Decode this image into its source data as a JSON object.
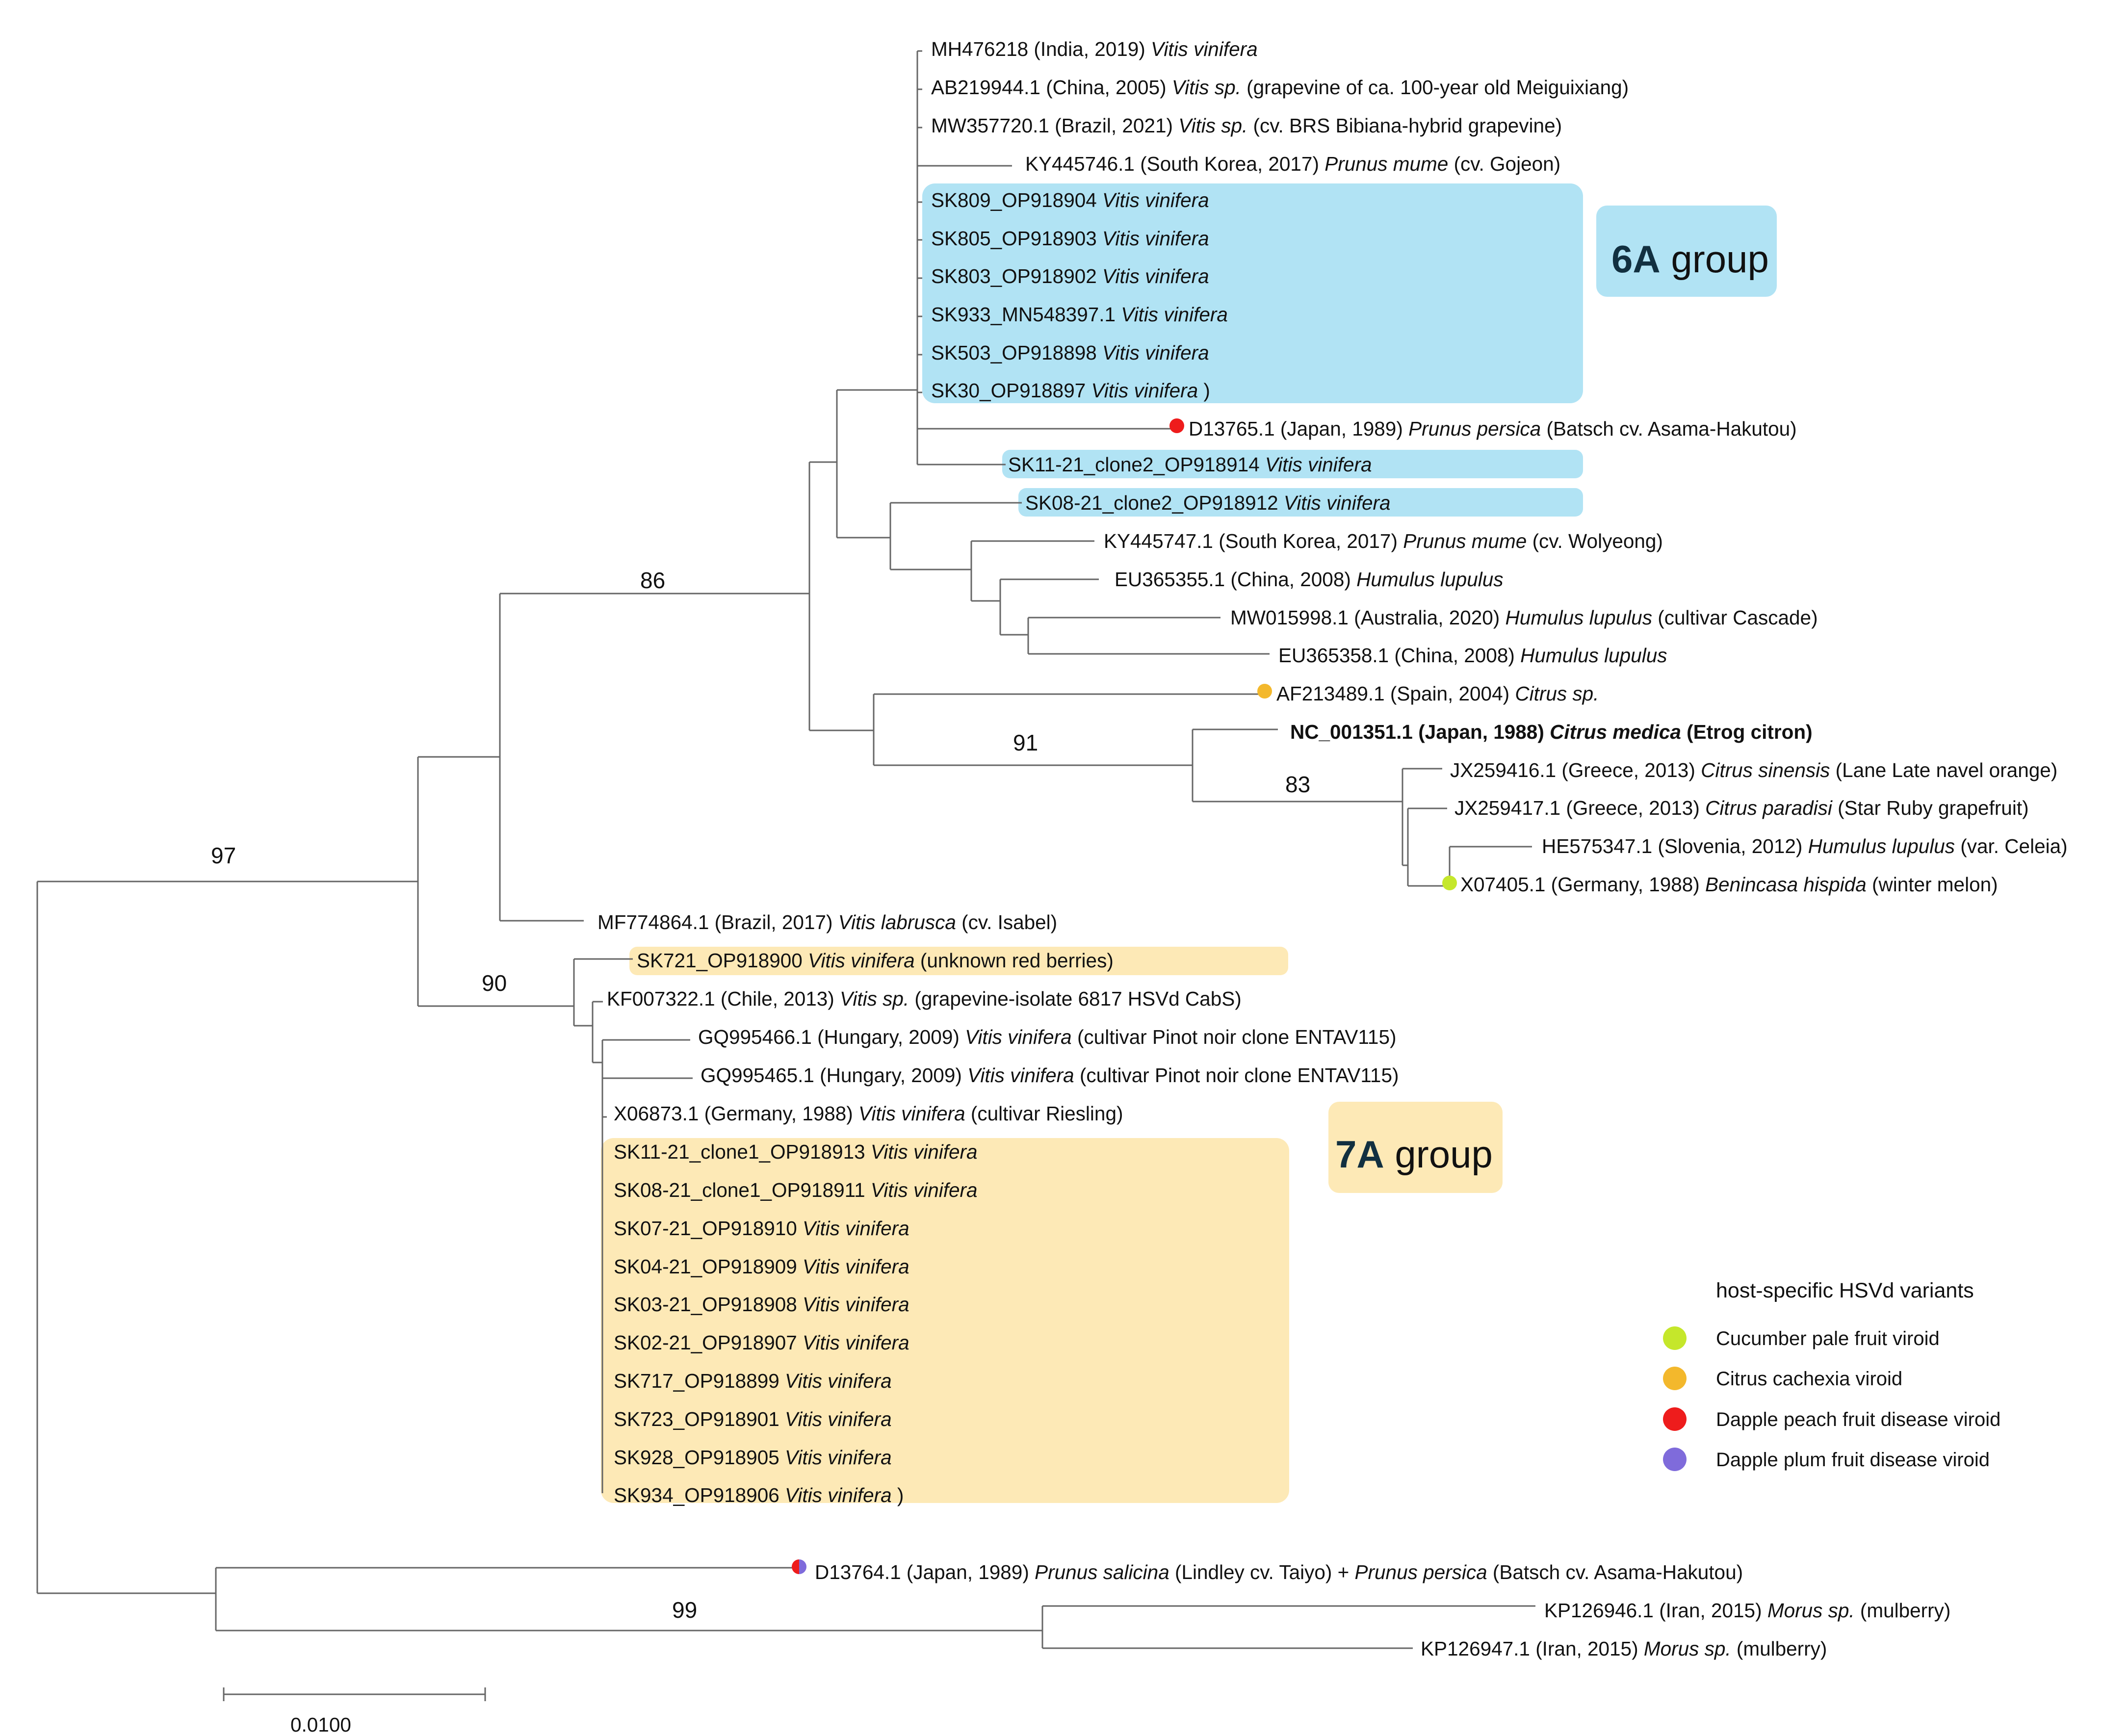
{
  "colors": {
    "group_6A": "#b1e3f4",
    "group_7A": "#fde9b6",
    "cucumber": "#c5e72b",
    "citrus_cachexia": "#f3b82c",
    "dapple_peach": "#ee1c1c",
    "dapple_plum": "#7f6bdb"
  },
  "groups": {
    "g6A": {
      "bold": "6A",
      "rest": " group"
    },
    "g7A": {
      "bold": "7A",
      "rest": " group"
    }
  },
  "legend": {
    "title": "host-specific HSVd variants",
    "items": [
      {
        "label": "Cucumber pale fruit viroid",
        "color": "#c5e72b"
      },
      {
        "label": "Citrus cachexia viroid",
        "color": "#f3b82c"
      },
      {
        "label": "Dapple peach fruit disease viroid",
        "color": "#ee1c1c"
      },
      {
        "label": "Dapple plum fruit disease viroid",
        "color": "#7f6bdb"
      }
    ]
  },
  "scale_bar": {
    "label": "0.0100"
  },
  "bootstrap": {
    "b97": "97",
    "b86": "86",
    "b91": "91",
    "b83": "83",
    "b90": "90",
    "b99": "99"
  },
  "taxa": {
    "mh476218": {
      "accession": "MH476218 (India, 2019) ",
      "species": "Vitis vinifera",
      "note": ""
    },
    "ab219944": {
      "accession": "AB219944.1 (China, 2005) ",
      "species": "Vitis sp.",
      "note": " (grapevine of ca. 100-year old Meiguixiang)"
    },
    "mw357720": {
      "accession": "MW357720.1 (Brazil, 2021) ",
      "species": "Vitis sp.",
      "note": " (cv. BRS Bibiana-hybrid grapevine)"
    },
    "ky445746": {
      "accession": "KY445746.1 (South Korea, 2017) ",
      "species": "Prunus mume",
      "note": " (cv. Gojeon)"
    },
    "sk809": {
      "accession": "SK809_OP918904 ",
      "species": "Vitis vinifera",
      "note": ""
    },
    "sk805": {
      "accession": "SK805_OP918903 ",
      "species": "Vitis vinifera",
      "note": ""
    },
    "sk803": {
      "accession": "SK803_OP918902 ",
      "species": "Vitis vinifera",
      "note": ""
    },
    "sk933": {
      "accession": "SK933_MN548397.1 ",
      "species": "Vitis vinifera",
      "note": ""
    },
    "sk503": {
      "accession": "SK503_OP918898 ",
      "species": "Vitis vinifera",
      "note": ""
    },
    "sk30": {
      "accession": "SK30_OP918897 ",
      "species": "Vitis vinifera",
      "note": " )"
    },
    "d13765": {
      "accession": "D13765.1 (Japan, 1989) ",
      "species": "Prunus persica",
      "note": " (Batsch cv. Asama-Hakutou)"
    },
    "sk1121c2": {
      "accession": "SK11-21_clone2_OP918914 ",
      "species": "Vitis vinifera",
      "note": ""
    },
    "sk0821c2": {
      "accession": "SK08-21_clone2_OP918912 ",
      "species": "Vitis vinifera",
      "note": ""
    },
    "ky445747": {
      "accession": "KY445747.1 (South Korea, 2017) ",
      "species": "Prunus mume",
      "note": " (cv. Wolyeong)"
    },
    "eu365355": {
      "accession": "EU365355.1 (China, 2008) ",
      "species": "Humulus lupulus",
      "note": ""
    },
    "mw015998": {
      "accession": "MW015998.1 (Australia, 2020) ",
      "species": "Humulus lupulus",
      "note": " (cultivar Cascade)"
    },
    "eu365358": {
      "accession": "EU365358.1 (China, 2008) ",
      "species": "Humulus lupulus",
      "note": ""
    },
    "af213489": {
      "accession": "AF213489.1 (Spain, 2004) ",
      "species": "Citrus sp.",
      "note": ""
    },
    "nc001351": {
      "accession": "NC_001351.1 (Japan, 1988) ",
      "species": "Citrus medica",
      "note": " (Etrog citron)"
    },
    "jx259416": {
      "accession": "JX259416.1 (Greece, 2013) ",
      "species": "Citrus sinensis",
      "note": " (Lane Late navel orange)"
    },
    "jx259417": {
      "accession": "JX259417.1 (Greece, 2013) ",
      "species": "Citrus paradisi",
      "note": " (Star Ruby grapefruit)"
    },
    "he575347": {
      "accession": "HE575347.1 (Slovenia, 2012) ",
      "species": "Humulus lupulus",
      "note": " (var. Celeia)"
    },
    "x07405": {
      "accession": "X07405.1 (Germany, 1988) ",
      "species": "Benincasa hispida",
      "note": " (winter melon)"
    },
    "mf774864": {
      "accession": "MF774864.1 (Brazil, 2017) ",
      "species": "Vitis labrusca",
      "note": " (cv. Isabel)"
    },
    "sk721": {
      "accession": "SK721_OP918900 ",
      "species": "Vitis vinifera",
      "note": " (unknown red berries)"
    },
    "kf007322": {
      "accession": "KF007322.1 (Chile, 2013) ",
      "species": "Vitis sp.",
      "note": " (grapevine-isolate 6817 HSVd CabS)"
    },
    "gq995466": {
      "accession": "GQ995466.1 (Hungary, 2009) ",
      "species": "Vitis vinifera",
      "note": " (cultivar Pinot noir clone ENTAV115)"
    },
    "gq995465": {
      "accession": "GQ995465.1 (Hungary, 2009) ",
      "species": "Vitis vinifera",
      "note": " (cultivar Pinot noir clone ENTAV115)"
    },
    "x06873": {
      "accession": "X06873.1 (Germany, 1988) ",
      "species": "Vitis vinifera",
      "note": " (cultivar Riesling)"
    },
    "sk1121c1": {
      "accession": "SK11-21_clone1_OP918913 ",
      "species": "Vitis vinifera",
      "note": ""
    },
    "sk0821c1": {
      "accession": "SK08-21_clone1_OP918911 ",
      "species": "Vitis vinifera",
      "note": ""
    },
    "sk0721": {
      "accession": "SK07-21_OP918910 ",
      "species": "Vitis vinifera",
      "note": ""
    },
    "sk0421": {
      "accession": "SK04-21_OP918909 ",
      "species": "Vitis vinifera",
      "note": ""
    },
    "sk0321": {
      "accession": "SK03-21_OP918908 ",
      "species": "Vitis vinifera",
      "note": ""
    },
    "sk0221": {
      "accession": "SK02-21_OP918907 ",
      "species": "Vitis vinifera",
      "note": ""
    },
    "sk717": {
      "accession": "SK717_OP918899 ",
      "species": "Vitis vinifera",
      "note": ""
    },
    "sk723": {
      "accession": "SK723_OP918901 ",
      "species": "Vitis vinifera",
      "note": ""
    },
    "sk928": {
      "accession": "SK928_OP918905 ",
      "species": "Vitis vinifera",
      "note": ""
    },
    "sk934": {
      "accession": "SK934_OP918906 ",
      "species": "Vitis vinifera",
      "note": " )"
    },
    "d13764": {
      "accession": "D13764.1 (Japan, 1989) ",
      "species": "Prunus salicina",
      "note": " (Lindley cv. Taiyo) + ",
      "species2": "Prunus persica",
      "note2": " (Batsch cv. Asama-Hakutou)"
    },
    "kp126946": {
      "accession": "KP126946.1 (Iran, 2015) ",
      "species": "Morus sp.",
      "note": " (mulberry)"
    },
    "kp126947": {
      "accession": "KP126947.1 (Iran, 2015) ",
      "species": "Morus sp.",
      "note": " (mulberry)"
    }
  }
}
